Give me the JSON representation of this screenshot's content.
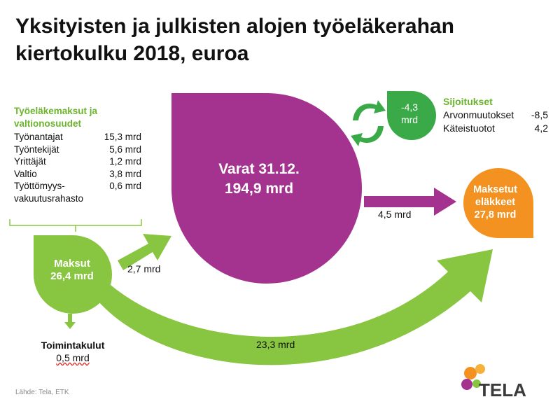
{
  "title": {
    "line1": "Yksityisten ja julkisten alojen työeläkerahan",
    "line2": "kiertokulku 2018, euroa"
  },
  "contributions": {
    "heading_line1": "Työeläkemaksut ja",
    "heading_line2": "valtionosuudet",
    "items": [
      {
        "label": "Työnantajat",
        "value": "15,3 mrd"
      },
      {
        "label": "Työntekijät",
        "value": "5,6 mrd"
      },
      {
        "label": "Yrittäjät",
        "value": "1,2 mrd"
      },
      {
        "label": "Valtio",
        "value": "3,8 mrd"
      },
      {
        "label": "Työttömyys-",
        "value": "0,6 mrd"
      }
    ],
    "continuation": "vakuutusrahasto"
  },
  "assets": {
    "line1": "Varat 31.12.",
    "line2": "194,9 mrd"
  },
  "payments": {
    "line1": "Maksut",
    "line2": "26,4 mrd"
  },
  "investments": {
    "net_line1": "-4,3",
    "net_line2": "mrd",
    "heading": "Sijoitukset",
    "rows": [
      {
        "label": "Arvonmuutokset",
        "value": "-8,5"
      },
      {
        "label": "Käteistuotot",
        "value": "4,2"
      }
    ]
  },
  "pensions": {
    "line1": "Maksetut",
    "line2": "eläkkeet",
    "line3": "27,8 mrd"
  },
  "flows": {
    "to_pensions_from_assets": "4,5 mrd",
    "to_assets_from_payments": "2,7 mrd",
    "to_pensions_from_payments": "23,3 mrd"
  },
  "operating_costs": {
    "heading": "Toimintakulut",
    "value": "0,5 mrd"
  },
  "source": "Lähde: Tela, ETK",
  "logo": {
    "text": "TELA"
  },
  "colors": {
    "purple": "#a4338f",
    "green": "#88c540",
    "dark_green": "#3aaa48",
    "orange": "#f39220",
    "heading_green": "#6cb42c"
  }
}
